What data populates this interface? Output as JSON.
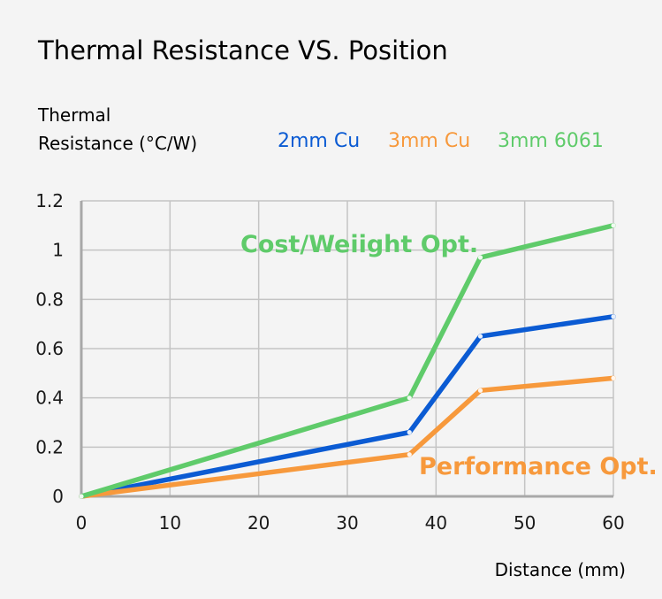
{
  "chart_data": {
    "type": "line",
    "title": "Thermal Resistance VS. Position",
    "ylabel_lines": [
      "Thermal",
      "Resistance (°C/W)"
    ],
    "xlabel": "Distance (mm)",
    "xlim": [
      0,
      60
    ],
    "ylim": [
      0,
      1.2
    ],
    "x_ticks": [
      0,
      10,
      20,
      30,
      40,
      50,
      60
    ],
    "y_ticks": [
      {
        "value": 0,
        "label": "0"
      },
      {
        "value": 0.2,
        "label": "0.2"
      },
      {
        "value": 0.4,
        "label": "0.4"
      },
      {
        "value": 0.6,
        "label": "0.6"
      },
      {
        "value": 0.8,
        "label": "0.8"
      },
      {
        "value": 1.0,
        "label": "1"
      },
      {
        "value": 1.2,
        "label": "1.2"
      }
    ],
    "grid": true,
    "legend_position": "top-right",
    "series": [
      {
        "name": "2mm Cu",
        "color": "#0b5bd3",
        "points": [
          [
            0,
            0
          ],
          [
            37,
            0.26
          ],
          [
            45,
            0.65
          ],
          [
            60,
            0.73
          ]
        ]
      },
      {
        "name": "3mm Cu",
        "color": "#f7993c",
        "points": [
          [
            0,
            0
          ],
          [
            37,
            0.17
          ],
          [
            45,
            0.43
          ],
          [
            60,
            0.48
          ]
        ]
      },
      {
        "name": "3mm 6061",
        "color": "#5fcb6a",
        "points": [
          [
            0,
            0
          ],
          [
            37,
            0.4
          ],
          [
            45,
            0.97
          ],
          [
            60,
            1.1
          ]
        ]
      }
    ],
    "annotations": [
      {
        "text": "Cost/Weiight Opt.",
        "color": "#5fcb6a"
      },
      {
        "text": "Performance Opt.",
        "color": "#f7993c"
      }
    ]
  }
}
